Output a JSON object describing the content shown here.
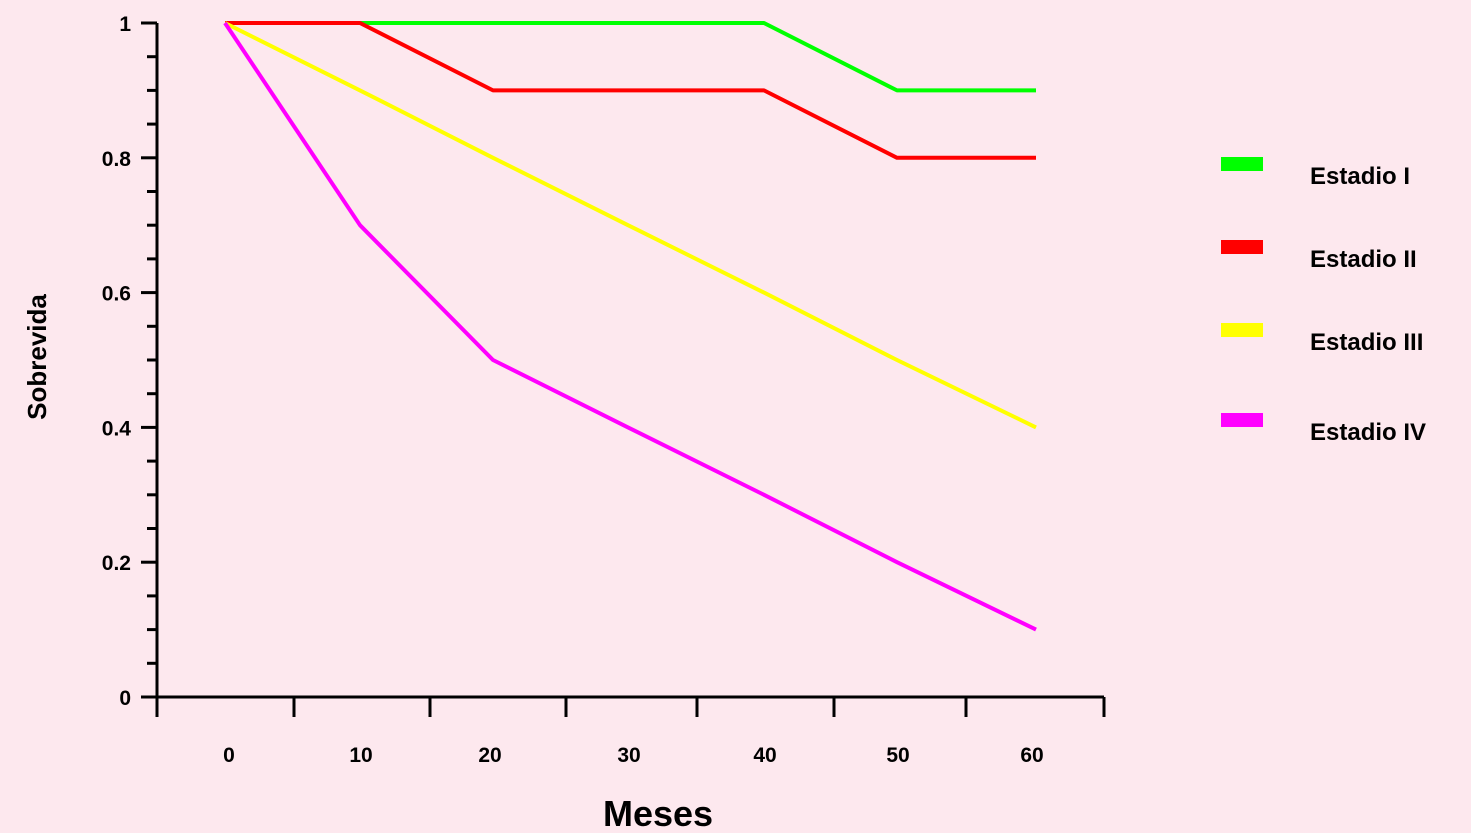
{
  "chart_data": {
    "type": "line",
    "xlabel": "Meses",
    "ylabel": "Sobrevida",
    "x": [
      0,
      10,
      20,
      30,
      40,
      50,
      60
    ],
    "x_tick_labels": [
      "0",
      "10",
      "20",
      "30",
      "40",
      "50",
      "60"
    ],
    "y_tick_labels": [
      "0",
      "0.2",
      "0.4",
      "0.6",
      "0.8",
      "1"
    ],
    "y_ticks": [
      0,
      0.2,
      0.4,
      0.6,
      0.8,
      1
    ],
    "ylim": [
      0,
      1
    ],
    "grid": false,
    "legend_position": "right",
    "series": [
      {
        "name": "Estadio I",
        "color": "#00ff00",
        "values": [
          1,
          1,
          1,
          1,
          1,
          0.9,
          0.9
        ]
      },
      {
        "name": "Estadio II",
        "color": "#ff0000",
        "values": [
          1,
          1,
          0.9,
          0.9,
          0.9,
          0.8,
          0.8
        ]
      },
      {
        "name": "Estadio III",
        "color": "#ffff00",
        "values": [
          1,
          0.9,
          0.8,
          0.7,
          0.6,
          0.5,
          0.4
        ]
      },
      {
        "name": "Estadio IV",
        "color": "#ff00ff",
        "values": [
          1,
          0.7,
          0.5,
          0.4,
          0.3,
          0.2,
          0.1
        ]
      }
    ]
  }
}
